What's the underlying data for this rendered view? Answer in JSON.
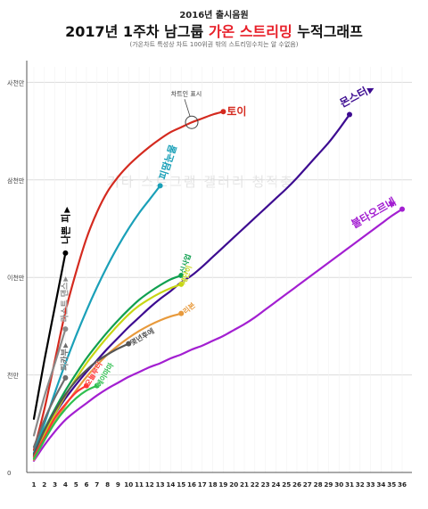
{
  "header": {
    "pre_title": "2016년 출시음원",
    "title_part1": "2017년 1주차 남그룹 ",
    "title_highlight": "가온 스트리밍",
    "title_part2": " 누적그래프",
    "note": "(가온차트 특성상 차트 100위권 밖의 스트리밍수치는 알 수없음)",
    "watermark": "기타 스트그램 갤러리 청적충"
  },
  "annotation": {
    "text": "차트인 표시"
  },
  "chart_data": {
    "type": "line",
    "title": "2017년 1주차 남그룹 가온 스트리밍 누적그래프",
    "x": [
      1,
      2,
      3,
      4,
      5,
      6,
      7,
      8,
      9,
      10,
      11,
      12,
      13,
      14,
      15,
      16,
      17,
      18,
      19,
      20,
      21,
      22,
      23,
      24,
      25,
      26,
      27,
      28,
      29,
      30,
      31,
      32,
      33,
      34,
      35,
      36
    ],
    "y_ticks": [
      {
        "value": 0,
        "label": "0"
      },
      {
        "value": 10000000,
        "label": "천만"
      },
      {
        "value": 20000000,
        "label": "이천만"
      },
      {
        "value": 30000000,
        "label": "삼천만"
      },
      {
        "value": 40000000,
        "label": "사천만"
      }
    ],
    "ylim": [
      0,
      42000000
    ],
    "series": [
      {
        "name": "몬스터",
        "color": "#3d0c91",
        "points": [
          [
            1,
            1700000
          ],
          [
            2,
            4200000
          ],
          [
            3,
            6000000
          ],
          [
            4,
            7600000
          ],
          [
            5,
            9000000
          ],
          [
            6,
            10300000
          ],
          [
            7,
            11500000
          ],
          [
            8,
            12700000
          ],
          [
            9,
            13800000
          ],
          [
            10,
            14900000
          ],
          [
            11,
            15900000
          ],
          [
            12,
            16900000
          ],
          [
            13,
            17800000
          ],
          [
            14,
            18600000
          ],
          [
            15,
            19500000
          ],
          [
            16,
            20200000
          ],
          [
            17,
            21100000
          ],
          [
            18,
            22100000
          ],
          [
            19,
            23100000
          ],
          [
            20,
            24100000
          ],
          [
            21,
            25100000
          ],
          [
            22,
            26100000
          ],
          [
            23,
            27100000
          ],
          [
            24,
            28100000
          ],
          [
            25,
            29100000
          ],
          [
            26,
            30200000
          ],
          [
            27,
            31400000
          ],
          [
            28,
            32600000
          ],
          [
            29,
            33800000
          ],
          [
            30,
            35200000
          ],
          [
            31,
            36700000
          ]
        ]
      },
      {
        "name": "토이",
        "color": "#d42a1f",
        "points": [
          [
            1,
            2300000
          ],
          [
            2,
            6500000
          ],
          [
            3,
            11500000
          ],
          [
            4,
            16500000
          ],
          [
            5,
            20500000
          ],
          [
            6,
            24000000
          ],
          [
            7,
            26700000
          ],
          [
            8,
            28800000
          ],
          [
            9,
            30300000
          ],
          [
            10,
            31500000
          ],
          [
            11,
            32500000
          ],
          [
            12,
            33400000
          ],
          [
            13,
            34200000
          ],
          [
            14,
            34900000
          ],
          [
            15,
            35400000
          ],
          [
            16,
            35900000
          ],
          [
            17,
            36300000
          ],
          [
            18,
            36700000
          ],
          [
            19,
            37000000
          ]
        ]
      },
      {
        "name": "피땀눈물",
        "color": "#1aa0b8",
        "points": [
          [
            1,
            2000000
          ],
          [
            2,
            5000000
          ],
          [
            3,
            8200000
          ],
          [
            4,
            11200000
          ],
          [
            5,
            14000000
          ],
          [
            6,
            16600000
          ],
          [
            7,
            19000000
          ],
          [
            8,
            21200000
          ],
          [
            9,
            23200000
          ],
          [
            10,
            25000000
          ],
          [
            11,
            26600000
          ],
          [
            12,
            28000000
          ],
          [
            13,
            29400000
          ]
        ]
      },
      {
        "name": "불타오르네",
        "color": "#a31fd1",
        "points": [
          [
            1,
            1200000
          ],
          [
            2,
            2800000
          ],
          [
            3,
            4200000
          ],
          [
            4,
            5400000
          ],
          [
            5,
            6300000
          ],
          [
            6,
            7100000
          ],
          [
            7,
            7900000
          ],
          [
            8,
            8600000
          ],
          [
            9,
            9200000
          ],
          [
            10,
            9800000
          ],
          [
            11,
            10300000
          ],
          [
            12,
            10800000
          ],
          [
            13,
            11200000
          ],
          [
            14,
            11700000
          ],
          [
            15,
            12100000
          ],
          [
            16,
            12600000
          ],
          [
            17,
            13000000
          ],
          [
            18,
            13500000
          ],
          [
            19,
            14000000
          ],
          [
            20,
            14600000
          ],
          [
            21,
            15200000
          ],
          [
            22,
            15900000
          ],
          [
            23,
            16700000
          ],
          [
            24,
            17500000
          ],
          [
            25,
            18300000
          ],
          [
            26,
            19100000
          ],
          [
            27,
            19900000
          ],
          [
            28,
            20700000
          ],
          [
            29,
            21500000
          ],
          [
            30,
            22300000
          ],
          [
            31,
            23100000
          ],
          [
            32,
            23900000
          ],
          [
            33,
            24700000
          ],
          [
            34,
            25500000
          ],
          [
            35,
            26300000
          ],
          [
            36,
            27000000
          ]
        ]
      },
      {
        "name": "나쁜 피",
        "color": "#000000",
        "points": [
          [
            1,
            5500000
          ],
          [
            2,
            11500000
          ],
          [
            3,
            17000000
          ],
          [
            4,
            22500000
          ]
        ]
      },
      {
        "name": "라스트 댄스",
        "color": "#8a8a8a",
        "points": [
          [
            1,
            3800000
          ],
          [
            2,
            7800000
          ],
          [
            3,
            11200000
          ],
          [
            4,
            14700000
          ]
        ]
      },
      {
        "name": "피카부",
        "color": "#6d6d6d",
        "points": [
          [
            1,
            2600000
          ],
          [
            2,
            5400000
          ],
          [
            3,
            7700000
          ],
          [
            4,
            9700000
          ]
        ]
      },
      {
        "name": "신사업",
        "color": "#10a050",
        "points": [
          [
            1,
            1800000
          ],
          [
            2,
            4400000
          ],
          [
            3,
            6500000
          ],
          [
            4,
            8400000
          ],
          [
            5,
            10100000
          ],
          [
            6,
            11700000
          ],
          [
            7,
            13100000
          ],
          [
            8,
            14400000
          ],
          [
            9,
            15600000
          ],
          [
            10,
            16700000
          ],
          [
            11,
            17700000
          ],
          [
            12,
            18500000
          ],
          [
            13,
            19200000
          ],
          [
            14,
            19800000
          ],
          [
            15,
            20200000
          ]
        ]
      },
      {
        "name": "세단이",
        "color": "#c7d614",
        "points": [
          [
            1,
            1500000
          ],
          [
            2,
            3900000
          ],
          [
            3,
            6000000
          ],
          [
            4,
            7900000
          ],
          [
            5,
            9600000
          ],
          [
            6,
            11200000
          ],
          [
            7,
            12600000
          ],
          [
            8,
            13900000
          ],
          [
            9,
            15100000
          ],
          [
            10,
            16200000
          ],
          [
            11,
            17100000
          ],
          [
            12,
            17800000
          ],
          [
            13,
            18400000
          ],
          [
            14,
            18900000
          ],
          [
            15,
            19300000
          ]
        ]
      },
      {
        "name": "리본",
        "color": "#e89a3c",
        "points": [
          [
            1,
            1300000
          ],
          [
            2,
            3300000
          ],
          [
            3,
            5200000
          ],
          [
            4,
            6900000
          ],
          [
            5,
            8400000
          ],
          [
            6,
            9800000
          ],
          [
            7,
            11000000
          ],
          [
            8,
            12100000
          ],
          [
            9,
            13000000
          ],
          [
            10,
            13800000
          ],
          [
            11,
            14500000
          ],
          [
            12,
            15100000
          ],
          [
            13,
            15600000
          ],
          [
            14,
            16000000
          ],
          [
            15,
            16300000
          ]
        ]
      },
      {
        "name": "몇년후에",
        "color": "#555555",
        "points": [
          [
            1,
            1900000
          ],
          [
            2,
            4300000
          ],
          [
            3,
            6300000
          ],
          [
            4,
            8000000
          ],
          [
            5,
            9400000
          ],
          [
            6,
            10500000
          ],
          [
            7,
            11400000
          ],
          [
            8,
            12100000
          ],
          [
            9,
            12700000
          ],
          [
            10,
            13200000
          ]
        ]
      },
      {
        "name": "오늘부터",
        "color": "#ff3434",
        "points": [
          [
            1,
            1600000
          ],
          [
            2,
            3600000
          ],
          [
            3,
            5600000
          ],
          [
            4,
            7000000
          ],
          [
            5,
            8200000
          ],
          [
            6,
            8900000
          ]
        ]
      },
      {
        "name": "에이마마",
        "color": "#2fbf4f",
        "points": [
          [
            1,
            1400000
          ],
          [
            2,
            3300000
          ],
          [
            3,
            5100000
          ],
          [
            4,
            6500000
          ],
          [
            5,
            7600000
          ],
          [
            6,
            8400000
          ],
          [
            7,
            8900000
          ]
        ]
      }
    ]
  }
}
